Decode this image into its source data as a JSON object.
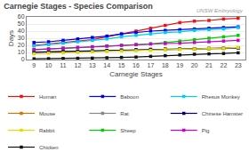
{
  "chart_data": {
    "type": "line",
    "title": "Carnegie Stages - Species Comparison",
    "xlabel": "Carnegie Stages",
    "ylabel": "Days",
    "x": [
      9,
      10,
      11,
      12,
      13,
      14,
      15,
      16,
      17,
      18,
      19,
      20,
      21,
      22,
      23
    ],
    "series": [
      {
        "name": "Human",
        "color": "#ee1111",
        "values": [
          20,
          22,
          24,
          26,
          28,
          32,
          36,
          40,
          44,
          48,
          52,
          54,
          55,
          57,
          58
        ]
      },
      {
        "name": "Baboon",
        "color": "#0000ee",
        "values": [
          24,
          25,
          27,
          29,
          31,
          33,
          36,
          38,
          40,
          41,
          42,
          43,
          44,
          45,
          46
        ]
      },
      {
        "name": "Rhesus Monkey",
        "color": "#00ccee",
        "values": [
          19,
          21,
          23,
          25,
          27,
          29,
          32,
          34,
          36,
          38,
          39,
          41,
          42,
          43,
          45
        ]
      },
      {
        "name": "Mouse",
        "color": "#cc7700",
        "values": [
          10,
          10.5,
          11,
          11.5,
          12,
          12.5,
          13,
          13.5,
          14,
          14.2,
          14.5,
          15,
          15.2,
          15.5,
          16
        ]
      },
      {
        "name": "Rat",
        "color": "#888888",
        "values": [
          10.2,
          10.7,
          11.2,
          11.7,
          12.2,
          12.7,
          13.2,
          13.7,
          14.2,
          14.5,
          14.8,
          15.2,
          15.5,
          15.8,
          16.2
        ]
      },
      {
        "name": "Chinese Hamster",
        "color": "#000066",
        "values": [
          10.4,
          10.9,
          11.4,
          11.9,
          12.4,
          12.9,
          13.4,
          13.9,
          14.4,
          14.7,
          15.0,
          15.4,
          15.7,
          16.0,
          16.4
        ]
      },
      {
        "name": "Rabbit",
        "color": "#dddd00",
        "values": [
          8,
          9,
          9.5,
          10,
          11,
          11.5,
          12,
          12.5,
          13,
          14,
          14.5,
          15,
          15.5,
          16,
          17
        ]
      },
      {
        "name": "Sheep",
        "color": "#00cc00",
        "values": [
          14,
          15,
          16,
          17,
          18,
          19,
          20,
          21,
          22,
          24,
          26,
          28,
          30,
          32,
          34
        ]
      },
      {
        "name": "Pig",
        "color": "#cc00cc",
        "values": [
          14,
          15,
          16,
          17,
          18,
          19,
          20,
          21,
          22,
          22.5,
          23,
          24,
          25,
          26,
          27
        ]
      },
      {
        "name": "Chicken",
        "color": "#111111",
        "values": [
          1,
          1.2,
          1.5,
          1.8,
          2.0,
          2.5,
          3.0,
          3.5,
          4.5,
          5.5,
          6.5,
          7.5,
          8.0,
          8.5,
          9.5
        ]
      }
    ],
    "xlim": [
      8.5,
      23.5
    ],
    "xticks": [
      9,
      10,
      11,
      12,
      13,
      14,
      15,
      16,
      17,
      18,
      19,
      20,
      21,
      22,
      23
    ],
    "ylim": [
      0,
      60
    ],
    "yticks": [
      0,
      10,
      20,
      30,
      40,
      50,
      60
    ],
    "grid": "y",
    "legend": "bottom",
    "marker": "square",
    "line_style": "solid",
    "annotations": [
      "UNSW Embryology"
    ]
  }
}
